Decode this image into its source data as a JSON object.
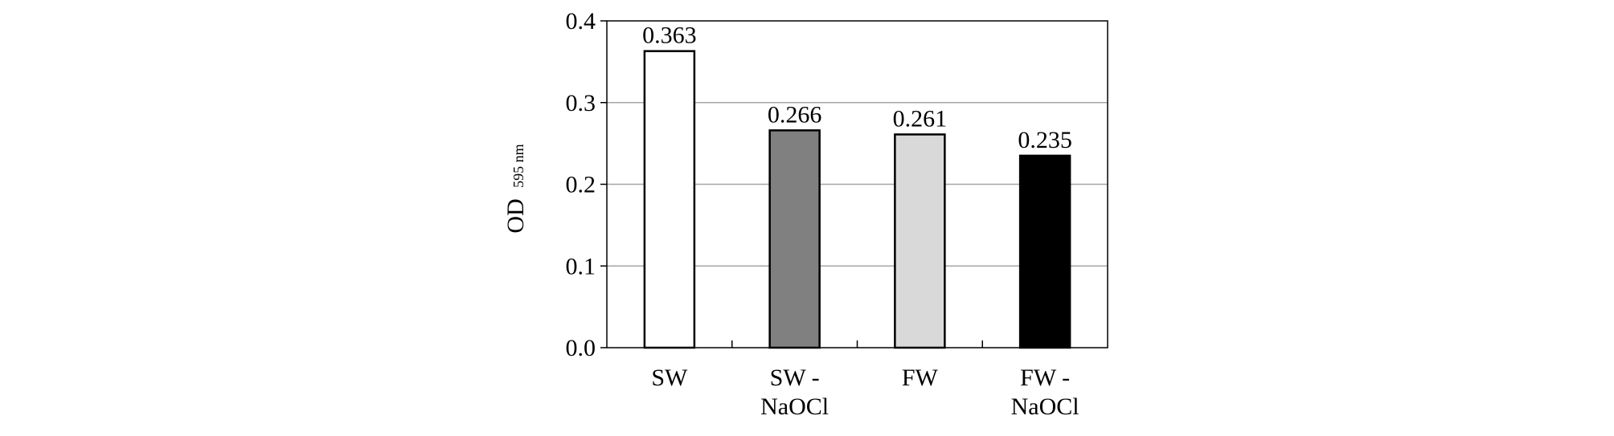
{
  "chart_data": {
    "type": "bar",
    "title": "",
    "xlabel": "",
    "ylabel": "OD",
    "ylabel_subscript": "595 nm",
    "ylim": [
      0,
      0.4
    ],
    "yticks": [
      "0.0",
      "0.1",
      "0.2",
      "0.3",
      "0.4"
    ],
    "categories": [
      [
        "SW"
      ],
      [
        "SW -",
        "NaOCl"
      ],
      [
        "FW"
      ],
      [
        "FW -",
        "NaOCl"
      ]
    ],
    "values": [
      0.363,
      0.266,
      0.261,
      0.235
    ],
    "value_labels": [
      "0.363",
      "0.266",
      "0.261",
      "0.235"
    ],
    "bar_colors": [
      "#ffffff",
      "#808080",
      "#d9d9d9",
      "#000000"
    ],
    "grid": true,
    "grid_color": "#a6a6a6",
    "legend": "none"
  }
}
